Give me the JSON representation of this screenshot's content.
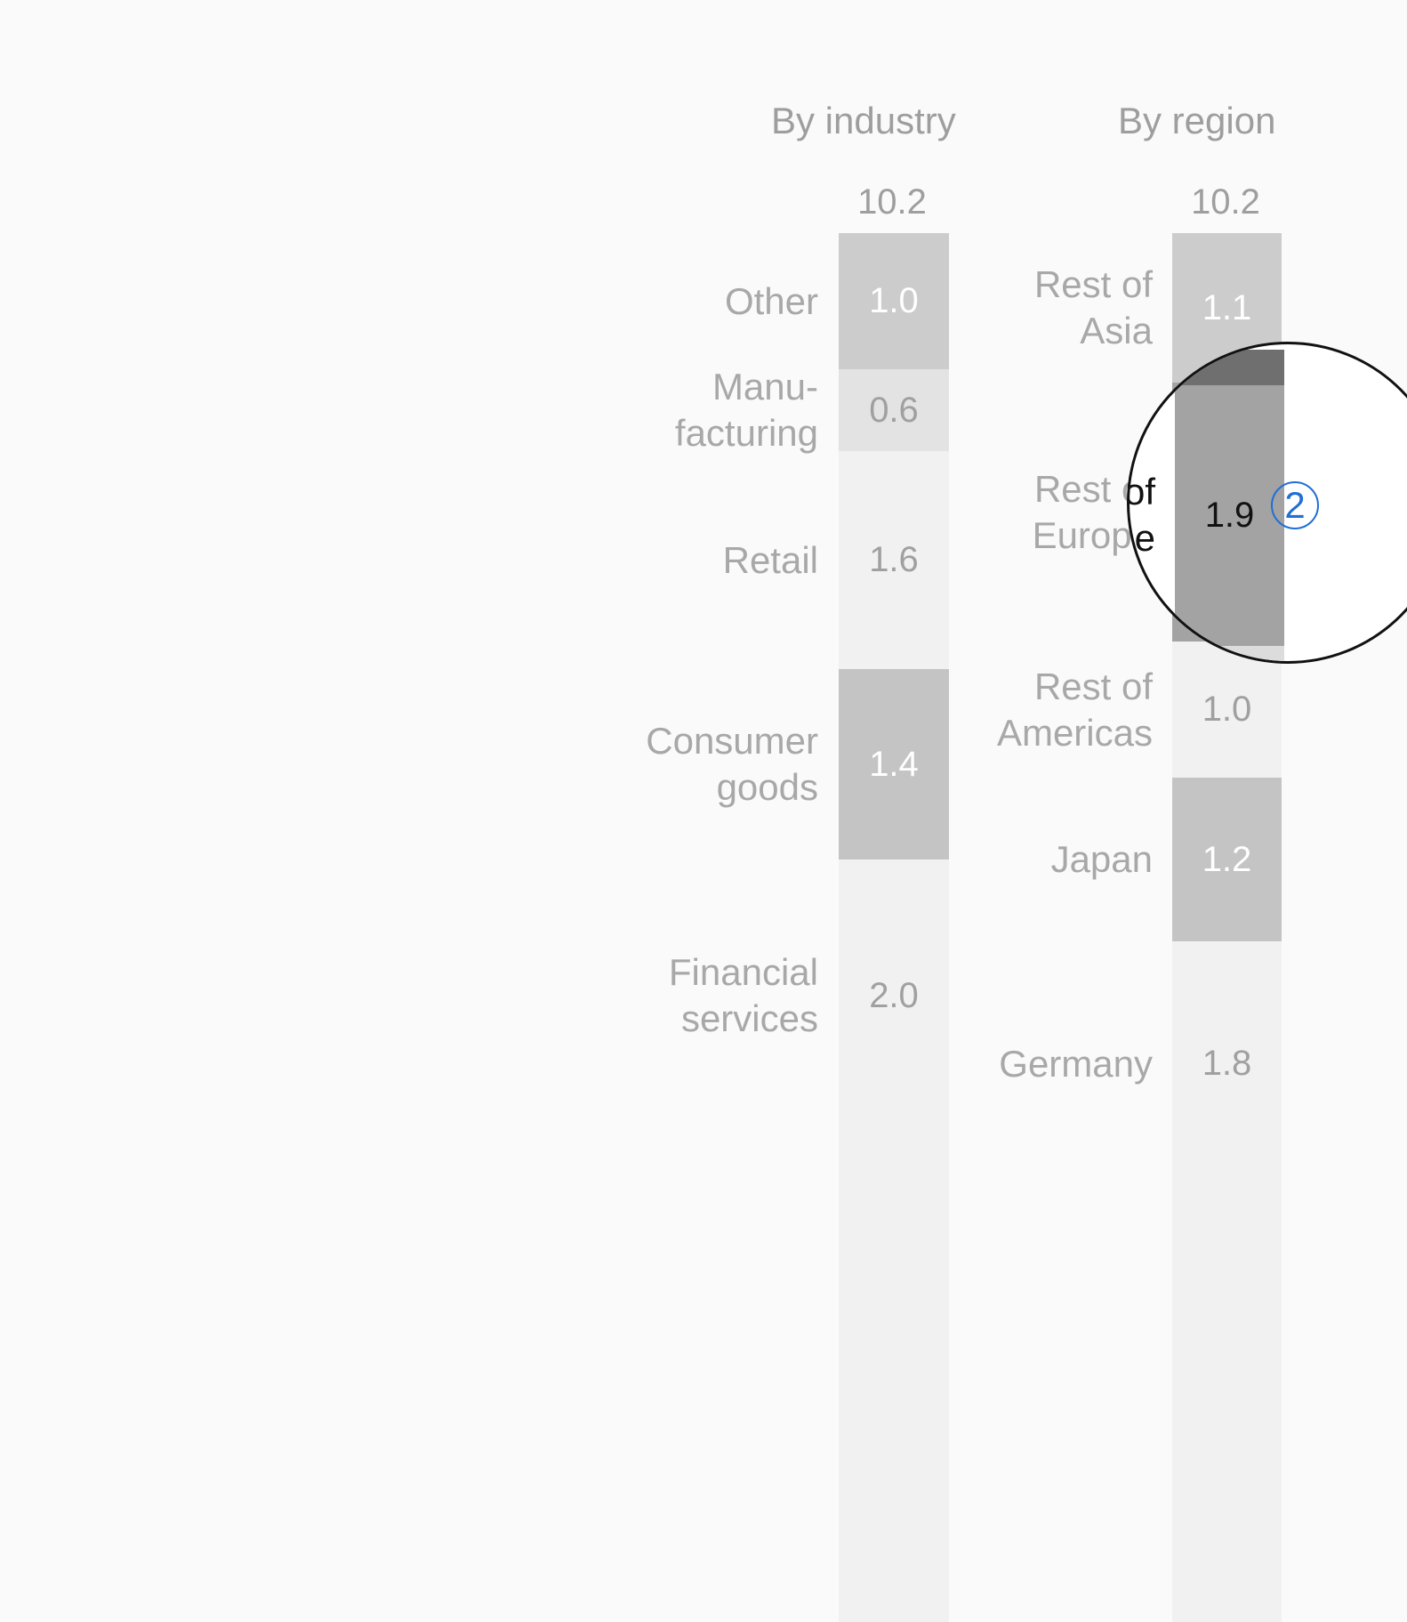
{
  "chart_data": [
    {
      "type": "bar",
      "title": "By industry",
      "total": "10.2",
      "segments": [
        {
          "label": "Other",
          "value": 1.0,
          "color": "#cccccc",
          "text_color": "#ffffff"
        },
        {
          "label": "Manu-\nfacturing",
          "value": 0.6,
          "color": "#e3e3e3",
          "text_color": "#a0a0a0"
        },
        {
          "label": "Retail",
          "value": 1.6,
          "color": "#f1f1f1",
          "text_color": "#a0a0a0"
        },
        {
          "label": "Consumer\ngoods",
          "value": 1.4,
          "color": "#c4c4c4",
          "text_color": "#ffffff"
        },
        {
          "label": "Financial\nservices",
          "value": 2.0,
          "color": "#f1f1f1",
          "text_color": "#a0a0a0"
        },
        {
          "label": "",
          "value": 3.6,
          "color": "#f1f1f1",
          "text_color": "#a0a0a0"
        }
      ]
    },
    {
      "type": "bar",
      "title": "By region",
      "total": "10.2",
      "segments": [
        {
          "label": "Rest of\nAsia",
          "value": 1.1,
          "color": "#cccccc",
          "text_color": "#ffffff"
        },
        {
          "label": "Rest of\nEurope",
          "value": 1.9,
          "color": "#a3a3a3",
          "text_color": "#111111",
          "highlight": true,
          "badge": "2",
          "band_color": "#6f6f6f"
        },
        {
          "label": "Rest of\nAmericas",
          "value": 1.0,
          "color": "#f1f1f1",
          "text_color": "#a0a0a0"
        },
        {
          "label": "Japan",
          "value": 1.2,
          "color": "#c4c4c4",
          "text_color": "#ffffff"
        },
        {
          "label": "Germany",
          "value": 1.8,
          "color": "#f1f1f1",
          "text_color": "#a0a0a0"
        },
        {
          "label": "",
          "value": 3.2,
          "color": "#f1f1f1",
          "text_color": "#a0a0a0"
        }
      ]
    }
  ],
  "lens": {
    "border_color": "#111111",
    "badge_color": "#1f6fd6",
    "background": "#ffffff"
  }
}
